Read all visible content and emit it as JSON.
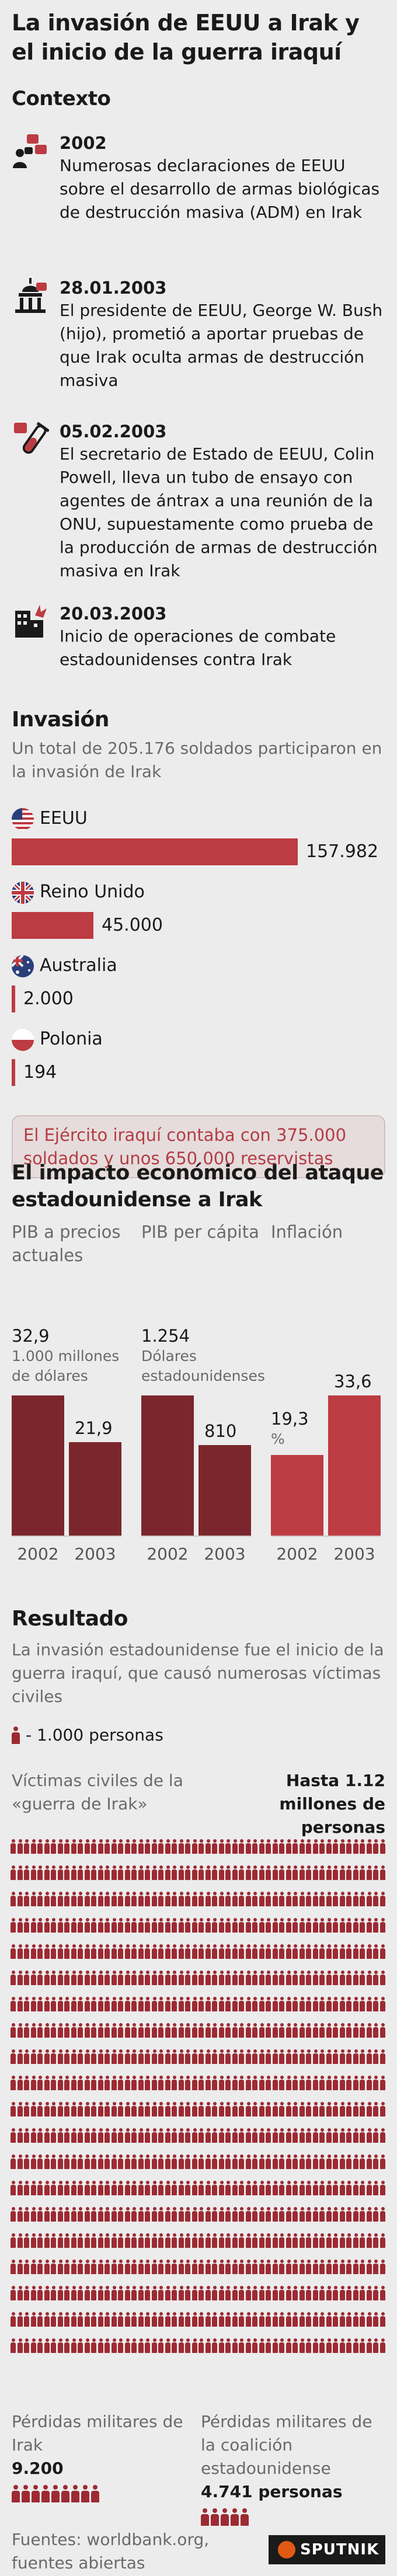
{
  "title": "La invasión de EEUU a Irak y el inicio de la guerra iraquí",
  "context": {
    "heading": "Contexto",
    "events": [
      {
        "date": "2002",
        "text": "Numerosas declaraciones de EEUU sobre el desarrollo de armas biológicas de destrucción masiva (ADM) en Irak",
        "icon": "speech-announcement-icon"
      },
      {
        "date": "28.01.2003",
        "text": "El presidente de EEUU, George W. Bush (hijo), prometió a aportar pruebas de que Irak oculta armas de destrucción masiva",
        "icon": "capitol-building-icon"
      },
      {
        "date": "05.02.2003",
        "text": "El secretario de Estado de EEUU, Colin Powell, lleva un tubo de ensayo con agentes de ántrax a una reunión de la ONU, supuestamente como prueba de la producción de armas de destrucción masiva en Irak",
        "icon": "test-tube-icon"
      },
      {
        "date": "20.03.2003",
        "text": "Inicio de operaciones de combate estadounidenses contra Irak",
        "icon": "bombed-building-icon"
      }
    ]
  },
  "invasion": {
    "heading": "Invasión",
    "subtitle": "Un total de 205.176 soldados participaron en la invasión de Irak",
    "note": "El Ejército iraquí contaba con 375.000 soldados y unos 650.000 reservistas"
  },
  "economy": {
    "heading": "El impacto económico del ataque estadounidense a Irak",
    "years": [
      "2002",
      "2003"
    ]
  },
  "result": {
    "heading": "Resultado",
    "subtitle": "La invasión estadounidense fue el inicio de la guerra iraquí, que causó numerosas víctimas civiles",
    "legend_text": "- 1.000 personas",
    "civilian_label": "Víctimas civiles de la «guerra de Irak»",
    "civilian_total": "Hasta 1.12 millones de personas",
    "civilian_icons": 1120,
    "losses": [
      {
        "label": "Pérdidas militares de Irak",
        "value": "9.200",
        "icons": 9
      },
      {
        "label": "Pérdidas militares de la coalición estadounidense",
        "value": "4.741 personas",
        "icons": 5
      }
    ]
  },
  "sources": "Fuentes: worldbank.org, fuentes abiertas",
  "brand": "SPUTNIK",
  "colors": {
    "accent": "#bd3b42",
    "dark": "#7a262c",
    "icon": "#9d2a32",
    "background": "#ececec"
  },
  "chart_data": [
    {
      "type": "bar",
      "orientation": "horizontal",
      "categories": [
        "EEUU",
        "Reino Unido",
        "Australia",
        "Polonia"
      ],
      "values": [
        157982,
        45000,
        2000,
        194
      ],
      "labels": [
        "157.982",
        "45.000",
        "2.000",
        "194"
      ]
    },
    {
      "type": "bar",
      "title": "PIB a precios actuales",
      "unit": "1.000 millones de dólares",
      "categories": [
        "2002",
        "2003"
      ],
      "values": [
        32.9,
        21.9
      ],
      "labels": [
        "32,9",
        "21,9"
      ]
    },
    {
      "type": "bar",
      "title": "PIB per cápita",
      "unit": "Dólares estadounidenses",
      "categories": [
        "2002",
        "2003"
      ],
      "values": [
        1254,
        810
      ],
      "labels": [
        "1.254",
        "810"
      ]
    },
    {
      "type": "bar",
      "title": "Inflación",
      "unit": "%",
      "categories": [
        "2002",
        "2003"
      ],
      "values": [
        19.3,
        33.6
      ],
      "labels": [
        "19,3",
        "33,6"
      ]
    }
  ]
}
